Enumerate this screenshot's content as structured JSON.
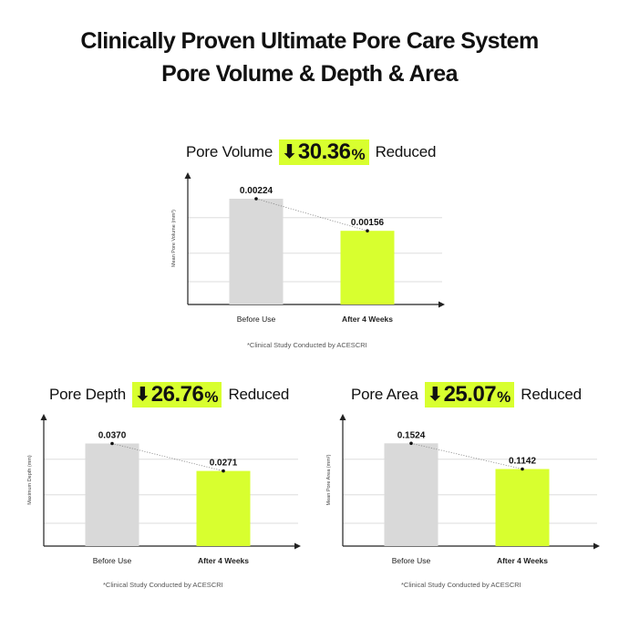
{
  "title_line1": "Clinically Proven Ultimate Pore Care System",
  "title_line2": "Pore Volume & Depth & Area",
  "colors": {
    "before": "#d9d9d9",
    "after": "#d8ff2f",
    "badge": "#d8ff2f",
    "grid": "#dddddd"
  },
  "chart_data": [
    {
      "type": "bar",
      "title": "Pore Volume",
      "reduction": "30.36",
      "reduction_unit": "%",
      "reduction_label": "Reduced",
      "arrow": "🡇",
      "categories": [
        "Before Use",
        "After 4 Weeks"
      ],
      "values": [
        0.00224,
        0.00156
      ],
      "value_labels": [
        "0.00224",
        "0.00156"
      ],
      "ylabel": "Mean Pore Volume (mm³)",
      "ylim": [
        0,
        0.0028
      ],
      "grid": true,
      "footnote": "*Clinical Study Conducted by ACESCRI"
    },
    {
      "type": "bar",
      "title": "Pore Depth",
      "reduction": "26.76",
      "reduction_unit": "%",
      "reduction_label": "Reduced",
      "arrow": "🡇",
      "categories": [
        "Before Use",
        "After 4 Weeks"
      ],
      "values": [
        0.037,
        0.0271
      ],
      "value_labels": [
        "0.0370",
        "0.0271"
      ],
      "ylabel": "Maximum Depth (mm)",
      "ylim": [
        0,
        0.0477
      ],
      "grid": true,
      "footnote": "*Clinical Study Conducted by ACESCRI"
    },
    {
      "type": "bar",
      "title": "Pore Area",
      "reduction": "25.07",
      "reduction_unit": "%",
      "reduction_label": "Reduced",
      "arrow": "🡇",
      "categories": [
        "Before Use",
        "After 4 Weeks"
      ],
      "values": [
        0.1524,
        0.1142
      ],
      "value_labels": [
        "0.1524",
        "0.1142"
      ],
      "ylabel": "Mean Pore Area (mm²)",
      "ylim": [
        0,
        0.196
      ],
      "grid": true,
      "footnote": "*Clinical Study Conducted by ACESCRI"
    }
  ]
}
